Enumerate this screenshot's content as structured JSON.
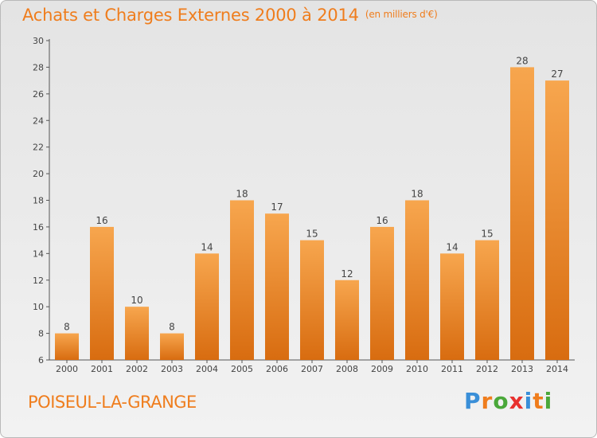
{
  "chart_data": {
    "type": "bar",
    "title": "Achats et Charges Externes 2000 à 2014",
    "unit": "(en milliers d'€)",
    "categories": [
      "2000",
      "2001",
      "2002",
      "2003",
      "2004",
      "2005",
      "2006",
      "2007",
      "2008",
      "2009",
      "2010",
      "2011",
      "2012",
      "2013",
      "2014"
    ],
    "values": [
      8,
      16,
      10,
      8,
      14,
      18,
      17,
      15,
      12,
      16,
      18,
      14,
      15,
      28,
      27
    ],
    "ylim": [
      6,
      30
    ],
    "yticks": [
      6,
      8,
      10,
      12,
      14,
      16,
      18,
      20,
      22,
      24,
      26,
      28,
      30
    ],
    "grid": false,
    "bar_color_light": "#f7a64e",
    "bar_color_dark": "#d86c10"
  },
  "commune": "POISEUL-LA-GRANGE",
  "logo": {
    "letters": [
      "P",
      "r",
      "o",
      "x",
      "i",
      "t",
      "i"
    ],
    "colors": [
      "#3a8fd8",
      "#ef7d1d",
      "#4aa83a",
      "#e8312e",
      "#3a8fd8",
      "#ef7d1d",
      "#4aa83a"
    ]
  }
}
